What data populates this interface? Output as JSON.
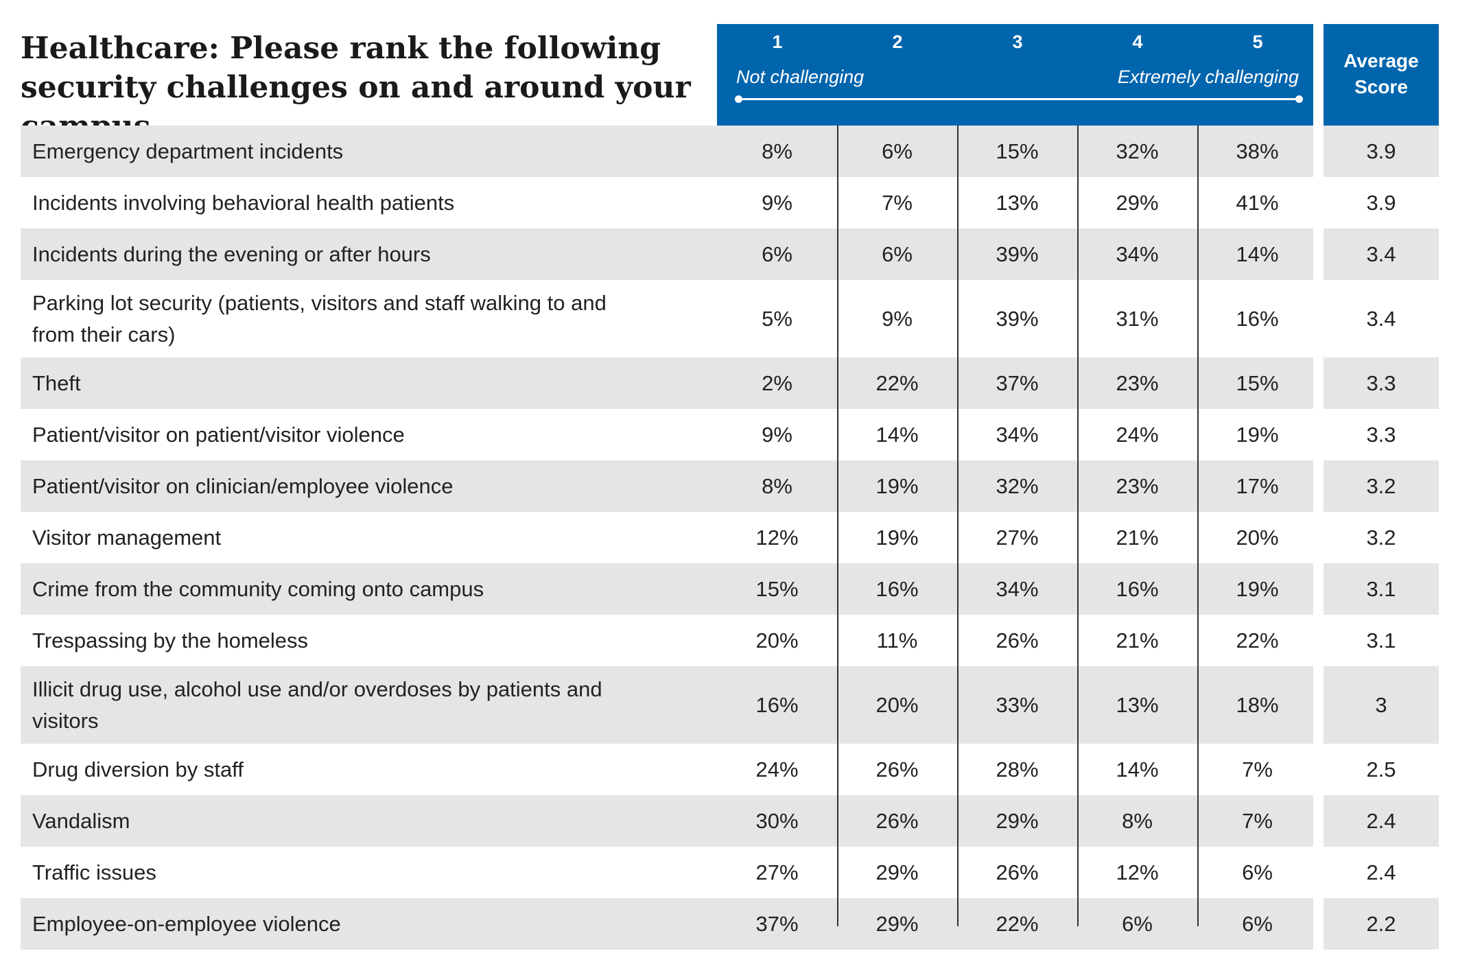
{
  "chart_data": {
    "type": "table",
    "title": "Healthcare: Please rank the following security challenges on and around your campus.",
    "scale": {
      "columns": [
        "1",
        "2",
        "3",
        "4",
        "5"
      ],
      "low_label": "Not challenging",
      "high_label": "Extremely challenging"
    },
    "average_header": "Average Score",
    "rows": [
      {
        "label": "Emergency department incidents",
        "values": [
          "8%",
          "6%",
          "15%",
          "32%",
          "38%"
        ],
        "average": "3.9"
      },
      {
        "label": "Incidents involving behavioral health patients",
        "values": [
          "9%",
          "7%",
          "13%",
          "29%",
          "41%"
        ],
        "average": "3.9"
      },
      {
        "label": "Incidents during the evening or after hours",
        "values": [
          "6%",
          "6%",
          "39%",
          "34%",
          "14%"
        ],
        "average": "3.4"
      },
      {
        "label": "Parking lot security (patients, visitors and staff walking to and from their cars)",
        "values": [
          "5%",
          "9%",
          "39%",
          "31%",
          "16%"
        ],
        "average": "3.4"
      },
      {
        "label": "Theft",
        "values": [
          "2%",
          "22%",
          "37%",
          "23%",
          "15%"
        ],
        "average": "3.3"
      },
      {
        "label": "Patient/visitor on patient/visitor violence",
        "values": [
          "9%",
          "14%",
          "34%",
          "24%",
          "19%"
        ],
        "average": "3.3"
      },
      {
        "label": "Patient/visitor on clinician/employee violence",
        "values": [
          "8%",
          "19%",
          "32%",
          "23%",
          "17%"
        ],
        "average": "3.2"
      },
      {
        "label": "Visitor management",
        "values": [
          "12%",
          "19%",
          "27%",
          "21%",
          "20%"
        ],
        "average": "3.2"
      },
      {
        "label": "Crime from the community coming onto campus",
        "values": [
          "15%",
          "16%",
          "34%",
          "16%",
          "19%"
        ],
        "average": "3.1"
      },
      {
        "label": "Trespassing by the homeless",
        "values": [
          "20%",
          "11%",
          "26%",
          "21%",
          "22%"
        ],
        "average": "3.1"
      },
      {
        "label": "Illicit drug use, alcohol use and/or overdoses by patients and visitors",
        "values": [
          "16%",
          "20%",
          "33%",
          "13%",
          "18%"
        ],
        "average": "3"
      },
      {
        "label": "Drug diversion by staff",
        "values": [
          "24%",
          "26%",
          "28%",
          "14%",
          "7%"
        ],
        "average": "2.5"
      },
      {
        "label": "Vandalism",
        "values": [
          "30%",
          "26%",
          "29%",
          "8%",
          "7%"
        ],
        "average": "2.4"
      },
      {
        "label": "Traffic issues",
        "values": [
          "27%",
          "29%",
          "26%",
          "12%",
          "6%"
        ],
        "average": "2.4"
      },
      {
        "label": "Employee-on-employee violence",
        "values": [
          "37%",
          "29%",
          "22%",
          "6%",
          "6%"
        ],
        "average": "2.2"
      }
    ]
  },
  "colors": {
    "header_blue": "#0065ad",
    "row_gray": "#e5e5e8"
  }
}
